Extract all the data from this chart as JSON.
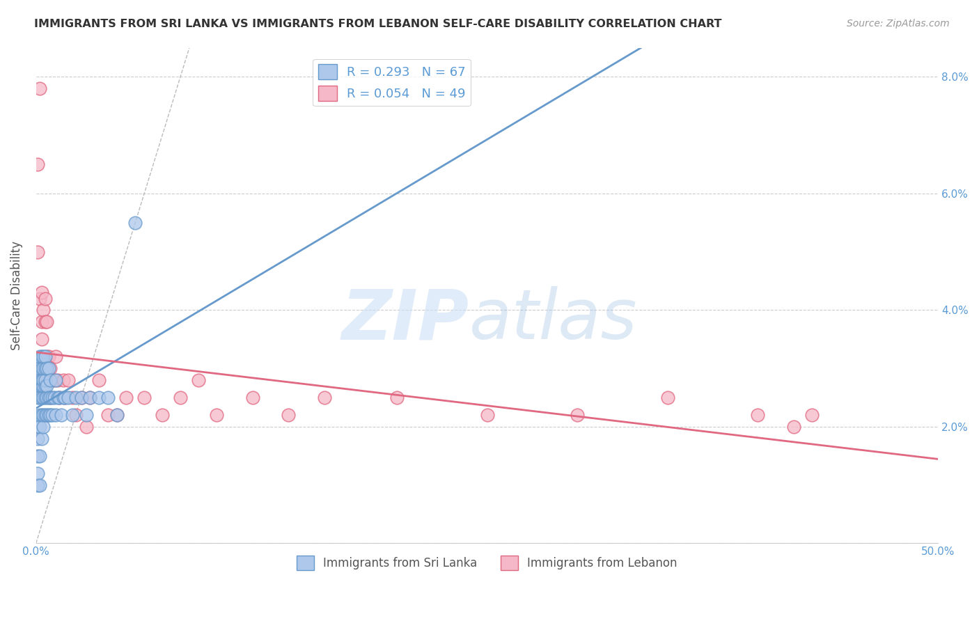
{
  "title": "IMMIGRANTS FROM SRI LANKA VS IMMIGRANTS FROM LEBANON SELF-CARE DISABILITY CORRELATION CHART",
  "source": "Source: ZipAtlas.com",
  "ylabel": "Self-Care Disability",
  "xlim": [
    0.0,
    0.5
  ],
  "ylim": [
    0.0,
    0.085
  ],
  "x_ticks": [
    0.0,
    0.1,
    0.2,
    0.3,
    0.4,
    0.5
  ],
  "x_tick_labels": [
    "0.0%",
    "",
    "",
    "",
    "",
    "50.0%"
  ],
  "y_ticks": [
    0.0,
    0.02,
    0.04,
    0.06,
    0.08
  ],
  "y_tick_labels": [
    "",
    "2.0%",
    "4.0%",
    "6.0%",
    "8.0%"
  ],
  "sri_lanka_color": "#adc8eb",
  "lebanon_color": "#f5b8c8",
  "sri_lanka_edge": "#6699cc",
  "lebanon_edge": "#e06880",
  "sri_lanka_R": 0.293,
  "sri_lanka_N": 67,
  "lebanon_R": 0.054,
  "lebanon_N": 49,
  "legend_R_sri_lanka": "R = 0.293",
  "legend_N_sri_lanka": "N = 67",
  "legend_R_lebanon": "R = 0.054",
  "legend_N_lebanon": "N = 49",
  "background_color": "#ffffff",
  "grid_color": "#cccccc",
  "tick_color": "#5b9bd5",
  "sri_lanka_x": [
    0.001,
    0.001,
    0.001,
    0.001,
    0.001,
    0.001,
    0.002,
    0.002,
    0.002,
    0.002,
    0.002,
    0.002,
    0.002,
    0.002,
    0.002,
    0.003,
    0.003,
    0.003,
    0.003,
    0.003,
    0.003,
    0.003,
    0.003,
    0.003,
    0.004,
    0.004,
    0.004,
    0.004,
    0.004,
    0.004,
    0.004,
    0.005,
    0.005,
    0.005,
    0.005,
    0.005,
    0.005,
    0.006,
    0.006,
    0.006,
    0.006,
    0.007,
    0.007,
    0.007,
    0.008,
    0.008,
    0.008,
    0.009,
    0.009,
    0.01,
    0.011,
    0.011,
    0.012,
    0.013,
    0.014,
    0.015,
    0.016,
    0.018,
    0.02,
    0.022,
    0.025,
    0.028,
    0.03,
    0.035,
    0.04,
    0.045,
    0.055
  ],
  "sri_lanka_y": [
    0.01,
    0.012,
    0.015,
    0.018,
    0.02,
    0.025,
    0.01,
    0.015,
    0.02,
    0.022,
    0.025,
    0.027,
    0.028,
    0.03,
    0.032,
    0.018,
    0.022,
    0.025,
    0.027,
    0.027,
    0.028,
    0.028,
    0.03,
    0.032,
    0.02,
    0.022,
    0.025,
    0.027,
    0.028,
    0.03,
    0.032,
    0.022,
    0.025,
    0.027,
    0.028,
    0.03,
    0.032,
    0.022,
    0.025,
    0.027,
    0.03,
    0.022,
    0.025,
    0.03,
    0.022,
    0.025,
    0.028,
    0.022,
    0.025,
    0.025,
    0.022,
    0.028,
    0.025,
    0.025,
    0.022,
    0.025,
    0.025,
    0.025,
    0.022,
    0.025,
    0.025,
    0.022,
    0.025,
    0.025,
    0.025,
    0.022,
    0.055
  ],
  "lebanon_x": [
    0.001,
    0.001,
    0.002,
    0.002,
    0.003,
    0.003,
    0.003,
    0.004,
    0.004,
    0.005,
    0.005,
    0.006,
    0.006,
    0.007,
    0.007,
    0.008,
    0.008,
    0.009,
    0.01,
    0.011,
    0.012,
    0.013,
    0.015,
    0.016,
    0.018,
    0.02,
    0.022,
    0.025,
    0.028,
    0.03,
    0.035,
    0.04,
    0.045,
    0.05,
    0.06,
    0.07,
    0.08,
    0.09,
    0.1,
    0.12,
    0.14,
    0.16,
    0.2,
    0.25,
    0.3,
    0.35,
    0.4,
    0.42,
    0.43
  ],
  "lebanon_y": [
    0.05,
    0.065,
    0.078,
    0.042,
    0.038,
    0.043,
    0.035,
    0.04,
    0.028,
    0.038,
    0.042,
    0.032,
    0.038,
    0.028,
    0.032,
    0.025,
    0.03,
    0.028,
    0.028,
    0.032,
    0.028,
    0.025,
    0.028,
    0.025,
    0.028,
    0.025,
    0.022,
    0.025,
    0.02,
    0.025,
    0.028,
    0.022,
    0.022,
    0.025,
    0.025,
    0.022,
    0.025,
    0.028,
    0.022,
    0.025,
    0.022,
    0.025,
    0.025,
    0.022,
    0.022,
    0.025,
    0.022,
    0.02,
    0.022
  ]
}
